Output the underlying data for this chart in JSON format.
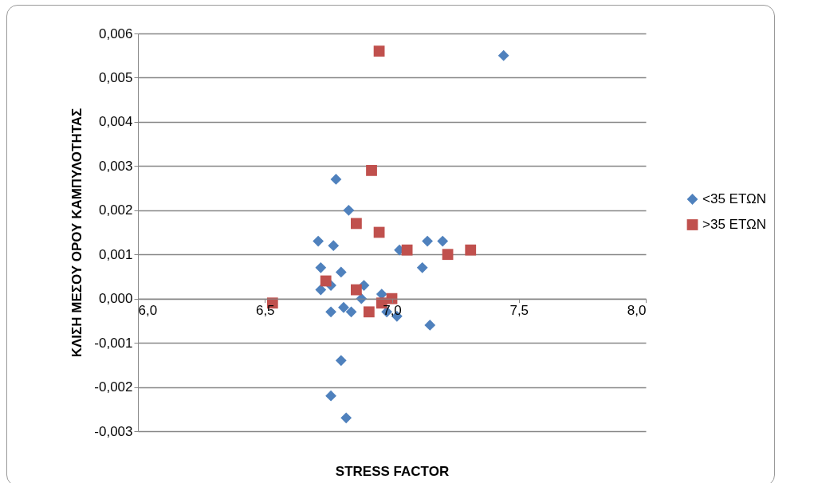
{
  "chart_data": {
    "type": "scatter",
    "xlabel": "STRESS FACTOR",
    "ylabel": "ΚΛΙΣΗ ΜΕΣΟΥ ΟΡΟΥ ΚΑΜΠΥΛΟΤΗΤΑΣ",
    "xlim": [
      6.0,
      8.0
    ],
    "xticks": [
      {
        "value": 6.0,
        "label": "6,0"
      },
      {
        "value": 6.5,
        "label": "6,5"
      },
      {
        "value": 7.0,
        "label": "7,0"
      },
      {
        "value": 7.5,
        "label": "7,5"
      },
      {
        "value": 8.0,
        "label": "8,0"
      }
    ],
    "ylim": [
      -0.003,
      0.006
    ],
    "yticks": [
      {
        "value": -0.003,
        "label": "-0,003"
      },
      {
        "value": -0.002,
        "label": "-0,002"
      },
      {
        "value": -0.001,
        "label": "-0,001"
      },
      {
        "value": 0,
        "label": "0,000"
      },
      {
        "value": 0.001,
        "label": "0,001"
      },
      {
        "value": 0.002,
        "label": "0,002"
      },
      {
        "value": 0.003,
        "label": "0,003"
      },
      {
        "value": 0.004,
        "label": "0,004"
      },
      {
        "value": 0.005,
        "label": "0,005"
      },
      {
        "value": 0.006,
        "label": "0,006"
      }
    ],
    "grid": "y",
    "legend": "right",
    "series": [
      {
        "name": "<35 ΕΤΩΝ",
        "color": "#4f81bd",
        "marker": "diamond",
        "x": [
          6.78,
          6.83,
          6.71,
          6.77,
          6.72,
          6.8,
          6.72,
          6.76,
          6.89,
          6.88,
          6.76,
          6.81,
          6.84,
          6.96,
          6.98,
          7.02,
          7.12,
          7.14,
          7.2,
          7.03,
          7.15,
          7.44,
          6.8,
          6.76,
          6.82
        ],
        "values": [
          0.0027,
          0.002,
          0.0013,
          0.0012,
          0.0007,
          0.0006,
          0.0002,
          0.0003,
          0.0003,
          0.0,
          -0.0003,
          -0.0002,
          -0.0003,
          0.0001,
          -0.0003,
          -0.0004,
          0.0007,
          0.0013,
          0.0013,
          0.0011,
          -0.0006,
          0.0055,
          -0.0014,
          -0.0022,
          -0.0027
        ]
      },
      {
        "name": ">35 ΕΤΩΝ",
        "color": "#c0504d",
        "marker": "square",
        "x": [
          6.92,
          6.86,
          6.95,
          7.06,
          7.22,
          7.31,
          6.74,
          6.86,
          6.91,
          6.96,
          7.0,
          6.95,
          6.53
        ],
        "values": [
          0.0029,
          0.0017,
          0.0015,
          0.0011,
          0.001,
          0.0011,
          0.0004,
          0.0002,
          -0.0003,
          -0.0001,
          0.0,
          0.0056,
          -0.0001
        ]
      }
    ]
  }
}
